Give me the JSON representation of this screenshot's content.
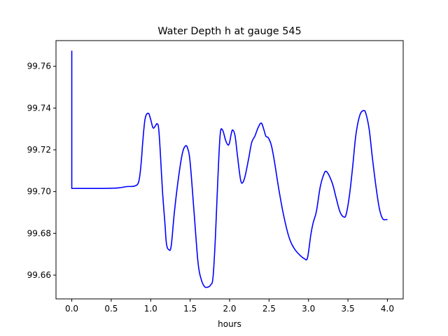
{
  "chart_data": {
    "type": "line",
    "title": "Water Depth h at gauge 545",
    "xlabel": "hours",
    "ylabel": "",
    "xlim": [
      -0.2,
      4.2
    ],
    "ylim": [
      99.6486,
      99.7723
    ],
    "xticks": [
      0.0,
      0.5,
      1.0,
      1.5,
      2.0,
      2.5,
      3.0,
      3.5,
      4.0
    ],
    "xtick_labels": [
      "0.0",
      "0.5",
      "1.0",
      "1.5",
      "2.0",
      "2.5",
      "3.0",
      "3.5",
      "4.0"
    ],
    "yticks": [
      99.66,
      99.68,
      99.7,
      99.72,
      99.74,
      99.76
    ],
    "ytick_labels": [
      "99.66",
      "99.68",
      "99.70",
      "99.72",
      "99.74",
      "99.76"
    ],
    "grid": false,
    "legend": "none",
    "series": [
      {
        "color": "#0000ff",
        "x": [
          0.0,
          0.0,
          0.0,
          0.1,
          0.3,
          0.5,
          0.6,
          0.7,
          0.8,
          0.85,
          0.88,
          0.9,
          0.93,
          0.97,
          1.0,
          1.03,
          1.06,
          1.08,
          1.1,
          1.12,
          1.15,
          1.18,
          1.2,
          1.23,
          1.26,
          1.3,
          1.35,
          1.4,
          1.44,
          1.47,
          1.5,
          1.55,
          1.6,
          1.64,
          1.68,
          1.72,
          1.76,
          1.79,
          1.82,
          1.85,
          1.88,
          1.91,
          1.95,
          1.98,
          2.0,
          2.02,
          2.04,
          2.07,
          2.1,
          2.14,
          2.17,
          2.2,
          2.24,
          2.28,
          2.32,
          2.36,
          2.4,
          2.43,
          2.46,
          2.49,
          2.53,
          2.57,
          2.62,
          2.68,
          2.75,
          2.82,
          2.9,
          2.95,
          2.98,
          3.0,
          3.03,
          3.06,
          3.1,
          3.15,
          3.2,
          3.23,
          3.27,
          3.31,
          3.35,
          3.4,
          3.45,
          3.48,
          3.52,
          3.56,
          3.6,
          3.65,
          3.7,
          3.73,
          3.77,
          3.81,
          3.86,
          3.9,
          3.94,
          3.98,
          4.0
        ],
        "y": [
          99.7675,
          99.7017,
          99.7015,
          99.7015,
          99.7015,
          99.7016,
          99.7018,
          99.7024,
          99.7027,
          99.705,
          99.714,
          99.724,
          99.735,
          99.7375,
          99.7345,
          99.7305,
          99.7315,
          99.7325,
          99.7305,
          99.72,
          99.7,
          99.685,
          99.675,
          99.6722,
          99.674,
          99.69,
          99.706,
          99.718,
          99.7218,
          99.7205,
          99.714,
          99.69,
          99.666,
          99.658,
          99.6546,
          99.6542,
          99.6553,
          99.659,
          99.678,
          99.705,
          99.727,
          99.7295,
          99.7245,
          99.7223,
          99.7235,
          99.7275,
          99.7295,
          99.7265,
          99.717,
          99.7055,
          99.7045,
          99.708,
          99.7155,
          99.7235,
          99.7265,
          99.7305,
          99.7328,
          99.7302,
          99.7265,
          99.7258,
          99.722,
          99.714,
          99.702,
          99.6895,
          99.6785,
          99.6727,
          99.6692,
          99.6678,
          99.6675,
          99.671,
          99.6795,
          99.6852,
          99.6905,
          99.7025,
          99.7088,
          99.7095,
          99.707,
          99.703,
          99.697,
          99.6902,
          99.6878,
          99.6895,
          99.6985,
          99.712,
          99.727,
          99.7365,
          99.7388,
          99.737,
          99.7295,
          99.716,
          99.701,
          99.6915,
          99.687,
          99.6866,
          99.6866
        ]
      }
    ]
  }
}
